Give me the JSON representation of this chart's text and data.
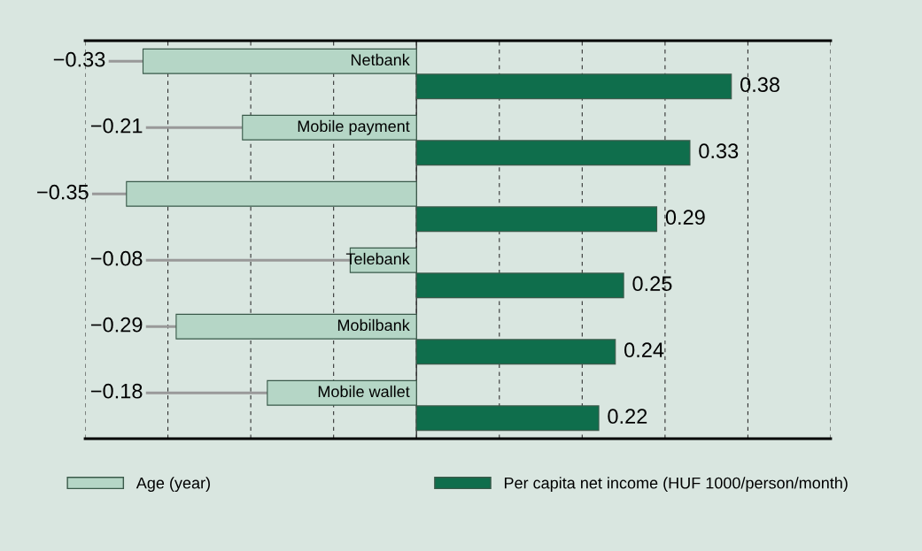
{
  "chart_data": {
    "type": "bar",
    "orientation": "horizontal",
    "categories": [
      "Netbank",
      "Mobile payment",
      null,
      "Telebank",
      "Mobilbank",
      "Mobile wallet"
    ],
    "series": [
      {
        "name": "Age (year)",
        "color": "#b5d6c6",
        "values": [
          -0.33,
          -0.21,
          -0.35,
          -0.08,
          -0.29,
          -0.18
        ],
        "value_labels": [
          "−0.33",
          "−0.21",
          "−0.35",
          "−0.08",
          "−0.29",
          "−0.18"
        ]
      },
      {
        "name": "Per capita net income (HUF 1000/person/month)",
        "color": "#0f6e4c",
        "values": [
          0.38,
          0.33,
          0.29,
          0.25,
          0.24,
          0.22
        ],
        "value_labels": [
          "0.38",
          "0.33",
          "0.29",
          "0.25",
          "0.24",
          "0.22"
        ]
      }
    ],
    "xlim": [
      -0.4,
      0.5
    ],
    "xticks": [
      {
        "value": -0.4,
        "label": null
      },
      {
        "value": -0.3,
        "label": null
      },
      {
        "value": -0.2,
        "label": null
      },
      {
        "value": -0.1,
        "label": null
      },
      {
        "value": 0,
        "label": null
      },
      {
        "value": 0.1,
        "label": null
      },
      {
        "value": 0.2,
        "label": null
      },
      {
        "value": 0.3,
        "label": null
      },
      {
        "value": 0.4,
        "label": null
      },
      {
        "value": 0.5,
        "label": null
      }
    ],
    "grid": "x",
    "legend": "bottom"
  }
}
